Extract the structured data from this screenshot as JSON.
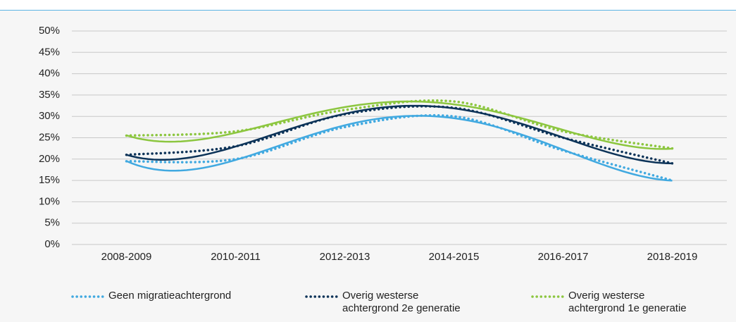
{
  "chart_data": {
    "type": "line",
    "categories": [
      "2008-2009",
      "2010-2011",
      "2012-2013",
      "2014-2015",
      "2016-2017",
      "2018-2019"
    ],
    "series": [
      {
        "name": "Geen migratieachtergrond",
        "color": "#41a9e0",
        "values": [
          19.5,
          20,
          27.5,
          30,
          22,
          15
        ]
      },
      {
        "name": "Overig westerse achtergrond 2e generatie",
        "color": "#0c3358",
        "values": [
          21,
          23,
          30.5,
          32,
          25,
          19
        ]
      },
      {
        "name": "Overig westerse achtergrond 1e generatie",
        "color": "#8cc63f",
        "values": [
          25.5,
          26.5,
          31.5,
          33.5,
          26.5,
          22.5
        ]
      }
    ],
    "ylim": [
      0,
      50
    ],
    "yticks": [
      {
        "value": 0,
        "label": "0%"
      },
      {
        "value": 5,
        "label": "5%"
      },
      {
        "value": 10,
        "label": "10%"
      },
      {
        "value": 15,
        "label": "15%"
      },
      {
        "value": 20,
        "label": "20%"
      },
      {
        "value": 25,
        "label": "25%"
      },
      {
        "value": 30,
        "label": "30%"
      },
      {
        "value": 35,
        "label": "35%"
      },
      {
        "value": 40,
        "label": "40%"
      },
      {
        "value": 45,
        "label": "45%"
      },
      {
        "value": 50,
        "label": "50%"
      }
    ],
    "grid": true,
    "legend": "bottom"
  }
}
